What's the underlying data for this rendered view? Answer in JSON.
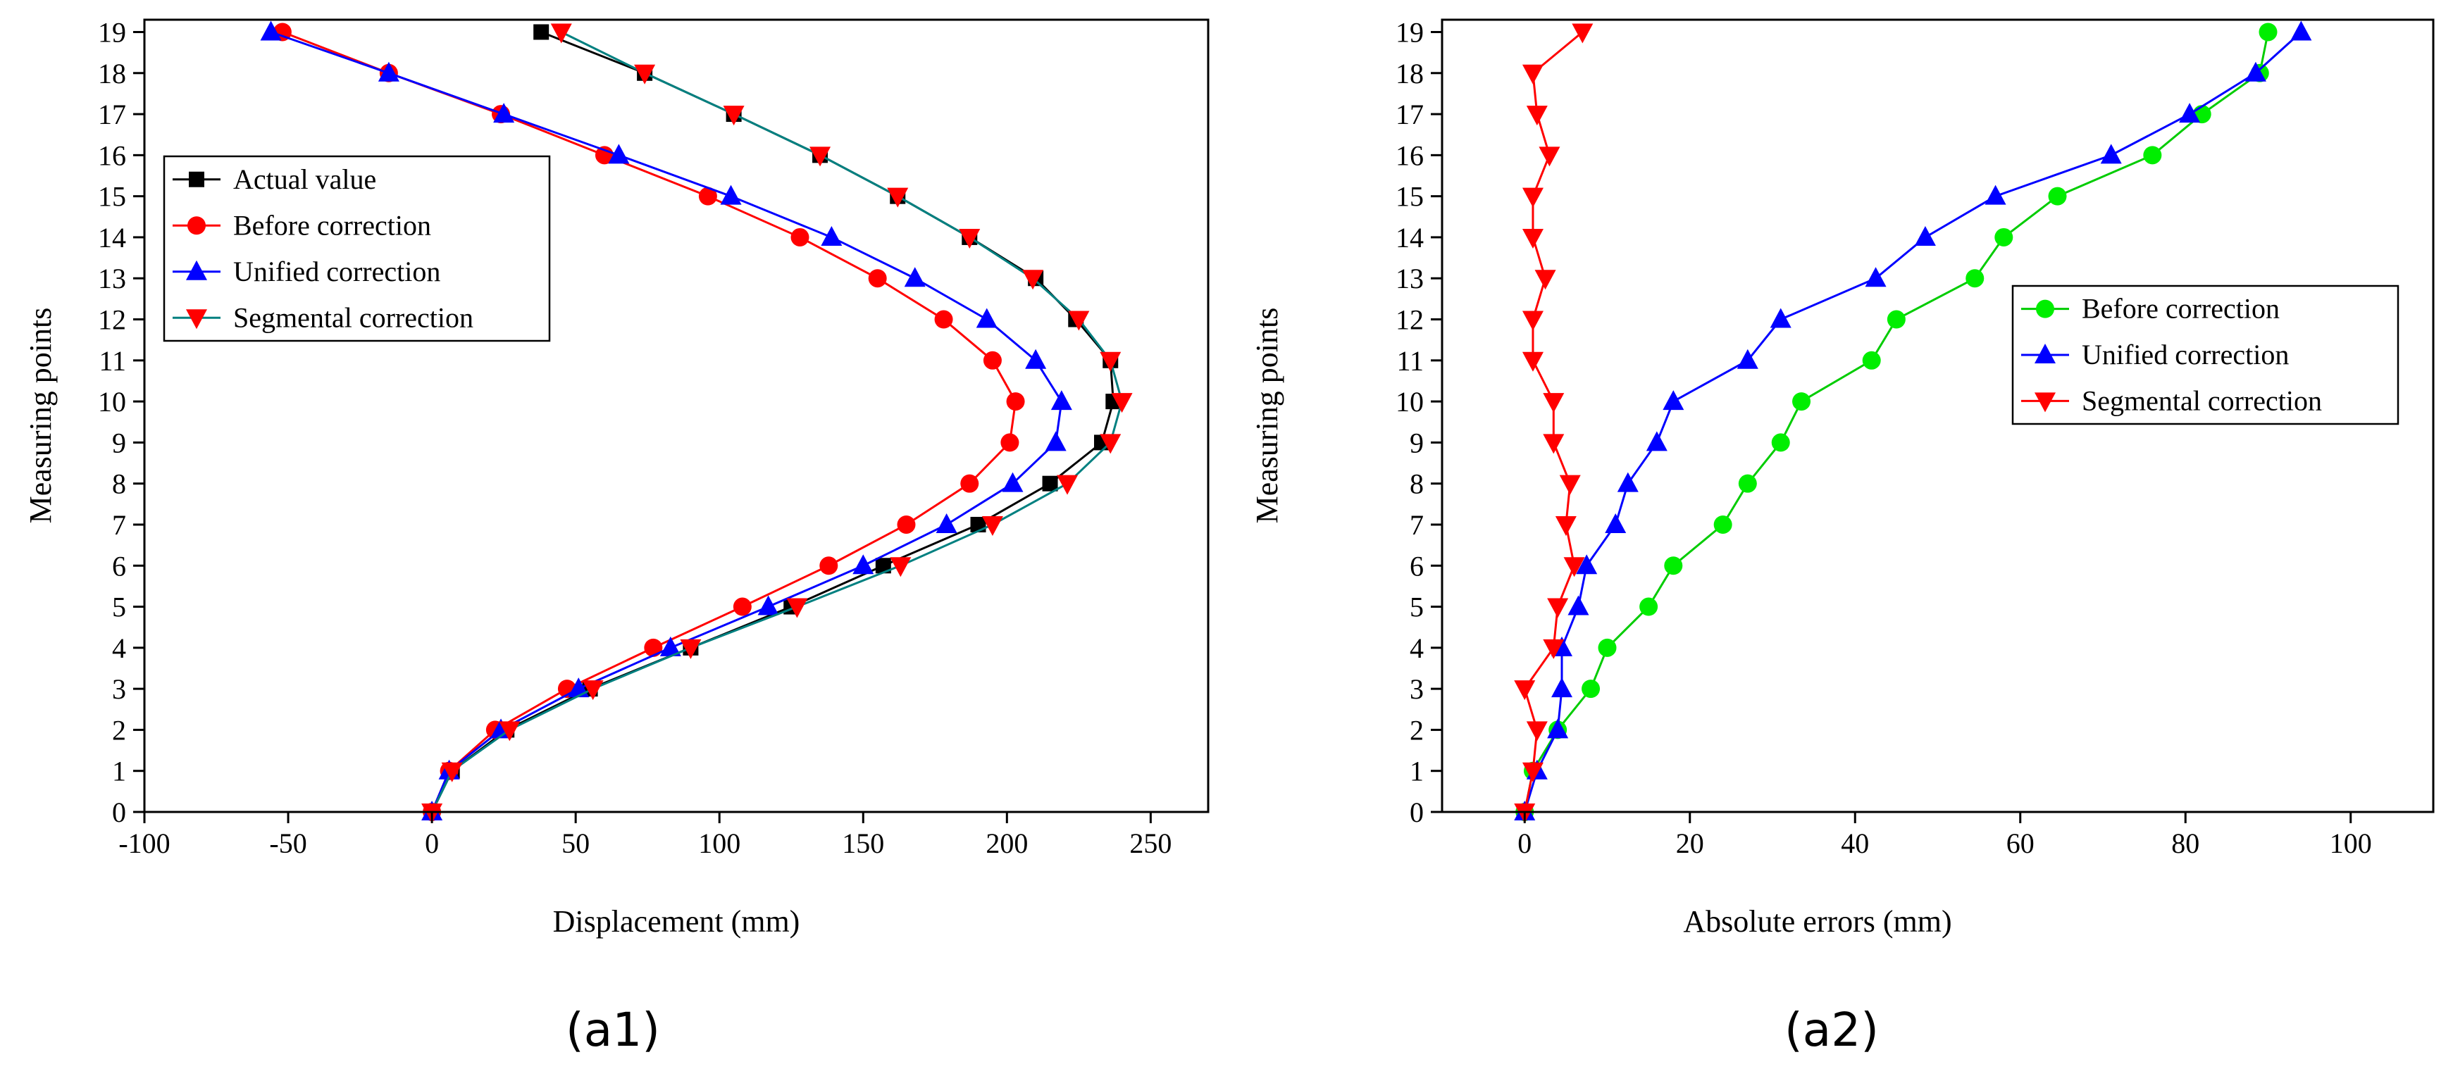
{
  "chart_data": [
    {
      "type": "line",
      "panel_label": "(a1)",
      "xlabel": "Displacement (mm)",
      "ylabel": "Measuring points",
      "xlim": [
        -100,
        270
      ],
      "ylim": [
        0,
        19.3
      ],
      "xticks": [
        -100,
        -50,
        0,
        50,
        100,
        150,
        200,
        250
      ],
      "xtick_labels": [
        "-100",
        "-50",
        "0",
        "50",
        "100",
        "150",
        "200",
        "250"
      ],
      "yticks": [
        0,
        1,
        2,
        3,
        4,
        5,
        6,
        7,
        8,
        9,
        10,
        11,
        12,
        13,
        14,
        15,
        16,
        17,
        18,
        19
      ],
      "ytick_labels": [
        "0",
        "1",
        "2",
        "3",
        "4",
        "5",
        "6",
        "7",
        "8",
        "9",
        "10",
        "11",
        "12",
        "13",
        "14",
        "15",
        "16",
        "17",
        "18",
        "19"
      ],
      "legend_position": "upper-left",
      "series": [
        {
          "name": "Actual value",
          "color": "#000000",
          "marker": "square",
          "x": [
            0,
            7,
            26,
            55,
            90,
            125,
            157,
            190,
            215,
            233,
            237,
            236,
            224,
            210,
            187,
            162,
            135,
            105,
            74,
            38
          ],
          "y": [
            0,
            1,
            2,
            3,
            4,
            5,
            6,
            7,
            8,
            9,
            10,
            11,
            12,
            13,
            14,
            15,
            16,
            17,
            18,
            19
          ]
        },
        {
          "name": "Before correction",
          "color": "#ff0000",
          "marker": "circle",
          "x": [
            0,
            6,
            22,
            47,
            77,
            108,
            138,
            165,
            187,
            201,
            203,
            195,
            178,
            155,
            128,
            96,
            60,
            24,
            -15,
            -52
          ],
          "y": [
            0,
            1,
            2,
            3,
            4,
            5,
            6,
            7,
            8,
            9,
            10,
            11,
            12,
            13,
            14,
            15,
            16,
            17,
            18,
            19
          ]
        },
        {
          "name": "Unified correction",
          "color": "#0000ff",
          "marker": "triangle-up",
          "x": [
            0,
            6,
            24,
            51,
            83,
            117,
            150,
            179,
            202,
            217,
            219,
            210,
            193,
            168,
            139,
            104,
            65,
            25,
            -15,
            -56
          ],
          "y": [
            0,
            1,
            2,
            3,
            4,
            5,
            6,
            7,
            8,
            9,
            10,
            11,
            12,
            13,
            14,
            15,
            16,
            17,
            18,
            19
          ]
        },
        {
          "name": "Segmental correction",
          "color": "#008080",
          "line_color": "#008080",
          "marker_color": "#ff0000",
          "marker": "triangle-down",
          "x": [
            0,
            7,
            27,
            56,
            90,
            127,
            163,
            195,
            221,
            236,
            240,
            236,
            225,
            209,
            187,
            162,
            135,
            105,
            74,
            45
          ],
          "y": [
            0,
            1,
            2,
            3,
            4,
            5,
            6,
            7,
            8,
            9,
            10,
            11,
            12,
            13,
            14,
            15,
            16,
            17,
            18,
            19
          ]
        }
      ]
    },
    {
      "type": "line",
      "panel_label": "(a2)",
      "xlabel": "Absolute  errors (mm)",
      "ylabel": "Measuring points",
      "xlim": [
        -10,
        110
      ],
      "ylim": [
        0,
        19.3
      ],
      "xticks": [
        0,
        20,
        40,
        60,
        80,
        100
      ],
      "xtick_labels": [
        "0",
        "20",
        "40",
        "60",
        "80",
        "100"
      ],
      "yticks": [
        0,
        1,
        2,
        3,
        4,
        5,
        6,
        7,
        8,
        9,
        10,
        11,
        12,
        13,
        14,
        15,
        16,
        17,
        18,
        19
      ],
      "ytick_labels": [
        "0",
        "1",
        "2",
        "3",
        "4",
        "5",
        "6",
        "7",
        "8",
        "9",
        "10",
        "11",
        "12",
        "13",
        "14",
        "15",
        "16",
        "17",
        "18",
        "19"
      ],
      "legend_position": "middle-right",
      "series": [
        {
          "name": "Before correction",
          "color": "#00cc00",
          "marker": "circle",
          "marker_color": "#00ee00",
          "x": [
            0,
            1,
            4,
            8,
            10,
            15,
            18,
            24,
            27,
            31,
            33.5,
            42,
            45,
            54.5,
            58,
            64.5,
            76,
            82,
            89,
            90
          ],
          "y": [
            0,
            1,
            2,
            3,
            4,
            5,
            6,
            7,
            8,
            9,
            10,
            11,
            12,
            13,
            14,
            15,
            16,
            17,
            18,
            19
          ]
        },
        {
          "name": "Unified correction",
          "color": "#0000ff",
          "marker": "triangle-up",
          "x": [
            0,
            1.5,
            4,
            4.5,
            4.5,
            6.5,
            7.5,
            11,
            12.5,
            16,
            18,
            27,
            31,
            42.5,
            48.5,
            57,
            71,
            80.5,
            88.5,
            94
          ],
          "y": [
            0,
            1,
            2,
            3,
            4,
            5,
            6,
            7,
            8,
            9,
            10,
            11,
            12,
            13,
            14,
            15,
            16,
            17,
            18,
            19
          ]
        },
        {
          "name": "Segmental correction",
          "color": "#ff0000",
          "marker": "triangle-down",
          "x": [
            0,
            1,
            1.5,
            0,
            3.5,
            4,
            6,
            5,
            5.5,
            3.5,
            3.5,
            1,
            1,
            2.5,
            1,
            1,
            3,
            1.5,
            1,
            7
          ],
          "y": [
            0,
            1,
            2,
            3,
            4,
            5,
            6,
            7,
            8,
            9,
            10,
            11,
            12,
            13,
            14,
            15,
            16,
            17,
            18,
            19
          ]
        }
      ]
    }
  ]
}
